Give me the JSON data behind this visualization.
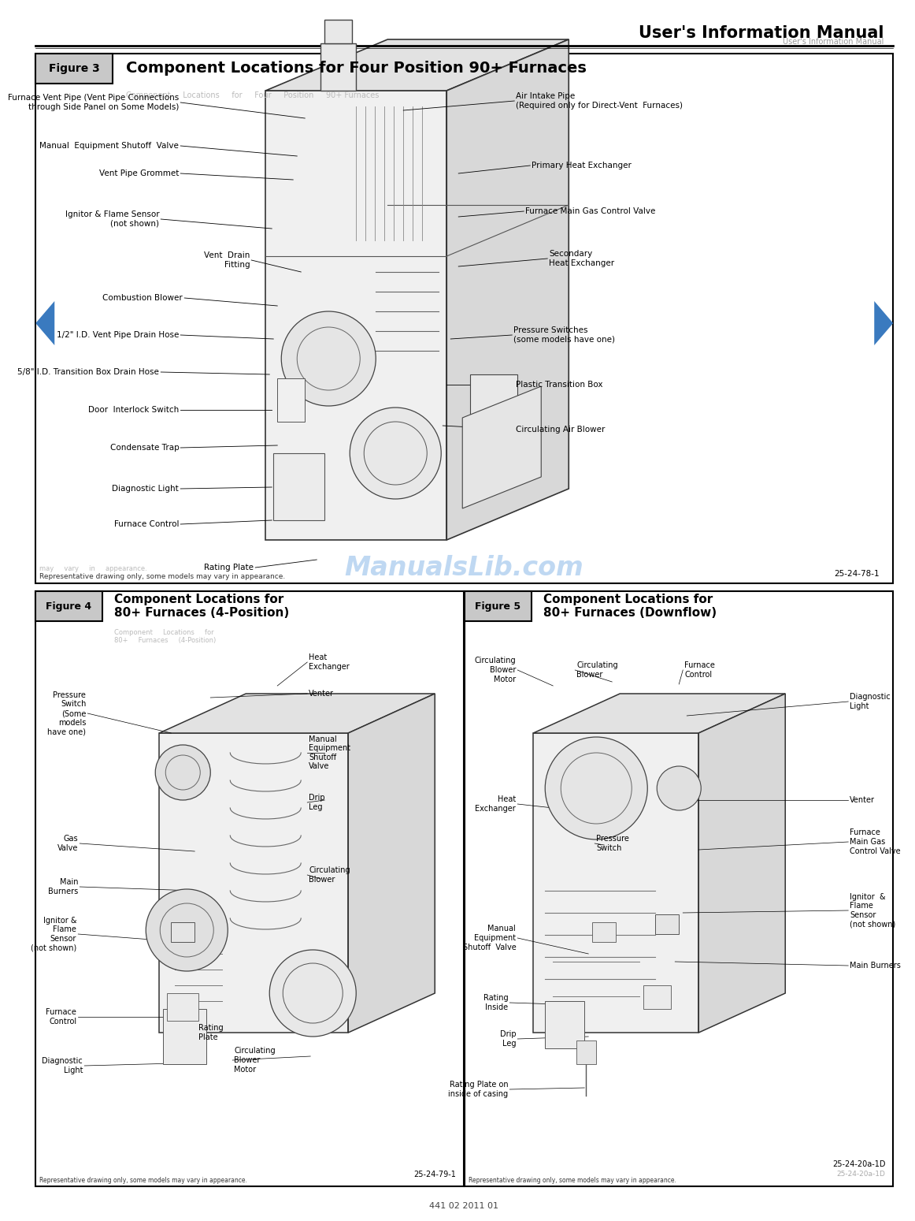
{
  "title_header": "User's Information Manual",
  "title_header_sub": "User's Information Manual",
  "bg_color": "#ffffff",
  "fig3_title_box": "Figure 3",
  "fig3_title": "Component Locations for Four Position 90+ Furnaces",
  "fig3_title_sub": "Component     Locations     for     Four     Position     90+ Furnaces",
  "fig3_labels_left": [
    [
      "Furnace Vent Pipe (Vent Pipe Connections\nthrough Side Panel on Some Models)",
      200,
      690,
      385,
      660
    ],
    [
      "Manual  Equipment Shutoff  Valve",
      200,
      650,
      355,
      630
    ],
    [
      "Vent Pipe Grommet",
      200,
      620,
      360,
      608
    ],
    [
      "Ignitor & Flame Sensor\n(not shown)",
      175,
      575,
      330,
      555
    ],
    [
      "Vent  Drain\nFitting",
      285,
      540,
      370,
      520
    ],
    [
      "Combustion Blower",
      200,
      505,
      340,
      492
    ],
    [
      "1/2\" I.D. Vent Pipe Drain Hose",
      200,
      465,
      335,
      455
    ],
    [
      "5/8\" I.D. Transition Box Drain Hose",
      175,
      420,
      335,
      418
    ],
    [
      "Door  Interlock Switch",
      200,
      382,
      340,
      380
    ],
    [
      "Condensate Trap",
      200,
      335,
      345,
      330
    ],
    [
      "Diagnostic Light",
      200,
      285,
      340,
      290
    ],
    [
      "Furnace Control",
      200,
      242,
      340,
      255
    ],
    [
      "Rating Plate",
      310,
      178,
      390,
      164
    ]
  ],
  "fig3_labels_right": [
    [
      "Air Intake Pipe\n(Required only for Direct-Vent  Furnaces)",
      610,
      686,
      490,
      666
    ],
    [
      "Primary Heat Exchanger",
      640,
      600,
      560,
      580
    ],
    [
      "Furnace Main Gas Control Valve",
      625,
      550,
      560,
      535
    ],
    [
      "Secondary\nHeat Exchanger",
      660,
      490,
      570,
      478
    ],
    [
      "Pressure Switches\n(some models have one)",
      610,
      405,
      565,
      398
    ],
    [
      "Plastic Transition Box",
      610,
      345,
      565,
      348
    ],
    [
      "Circulating Air Blower",
      610,
      295,
      565,
      295
    ]
  ],
  "fig3_footnote": "Representative drawing only, some models may vary in appearance.",
  "fig3_footnote_sub": "may     vary     in     appearance.",
  "fig3_code": "25-24-78-1",
  "watermark": "ManualsLib.com",
  "fig4_title_box": "Figure 4",
  "fig4_title": "Component Locations for\n80+ Furnaces (4-Position)",
  "fig4_title_sub": "Component     Locations     for\n80+     Furnaces     (4-Position)",
  "fig4_labels_left": [
    [
      "Pressure\nSwitch\n(Some\nmodels\nhave one)",
      85,
      925
    ],
    [
      "Gas\nValve",
      72,
      1075
    ],
    [
      "Main\nBurners",
      72,
      1125
    ],
    [
      "Ignitor &\nFlame\nSensor\n(not shown)",
      72,
      1185
    ],
    [
      "Furnace\nControl",
      72,
      1285
    ],
    [
      "Diagnostic\nLight",
      80,
      1340
    ]
  ],
  "fig4_labels_right": [
    [
      "Heat\nExchanger",
      345,
      840,
      285,
      870
    ],
    [
      "Venter",
      345,
      878,
      205,
      870
    ],
    [
      "Manual\nEquipment\nShutoff\nValve",
      345,
      945,
      305,
      950
    ],
    [
      "Drip\nLeg",
      345,
      1010,
      310,
      1005
    ],
    [
      "Circulating\nBlower",
      345,
      1105,
      295,
      1100
    ],
    [
      "Rating\nPlate",
      225,
      1295,
      220,
      1310
    ],
    [
      "Circulating\nBlower\nMotor",
      265,
      1320,
      290,
      1310
    ]
  ],
  "fig4_code": "25-24-79-1",
  "fig4_footnote": "Representative drawing only, some models may vary in appearance.",
  "fig5_title_box": "Figure 5",
  "fig5_title": "Component Locations for\n80+ Furnaces (Downflow)",
  "fig5_labels_left": [
    [
      "Circulating\nBlower\nMotor",
      575,
      840
    ],
    [
      "Heat\nExchanger",
      572,
      1000
    ],
    [
      "Manual\nEquipment\nShutoff  Valve",
      572,
      1175
    ],
    [
      "Rating\nPlate\nInside",
      572,
      1260
    ],
    [
      "Drip\nLeg",
      580,
      1305
    ],
    [
      "Rating Plate on\ninside of casing",
      575,
      1370
    ]
  ],
  "fig5_labels_right": [
    [
      "Circulating\nBlower",
      680,
      840,
      730,
      855
    ],
    [
      "Furnace\nControl",
      840,
      840,
      800,
      860
    ],
    [
      "Diagnostic\nLight",
      935,
      870,
      880,
      895
    ],
    [
      "Venter",
      935,
      1005,
      870,
      1005
    ],
    [
      "Furnace\nMain Gas\nControl Valve",
      935,
      1060,
      875,
      1070
    ],
    [
      "Ignitor  &\nFlame\nSensor\n(not shown)",
      935,
      1140,
      875,
      1145
    ],
    [
      "Main Burners",
      935,
      1210,
      875,
      1205
    ],
    [
      "Pressure\nSwitch",
      725,
      1055,
      730,
      1060
    ]
  ],
  "fig5_code": "25-24-20a-1D",
  "fig5_footnote": "Representative drawing only, some models may vary in appearance.",
  "bottom_code": "441 02 2011 01",
  "nav_arrow_color": "#3a7abf",
  "fig_box_fill": "#c8c8c8",
  "label_font_size": 7.5,
  "fig_title_font_size": 14,
  "header_font_size": 14
}
